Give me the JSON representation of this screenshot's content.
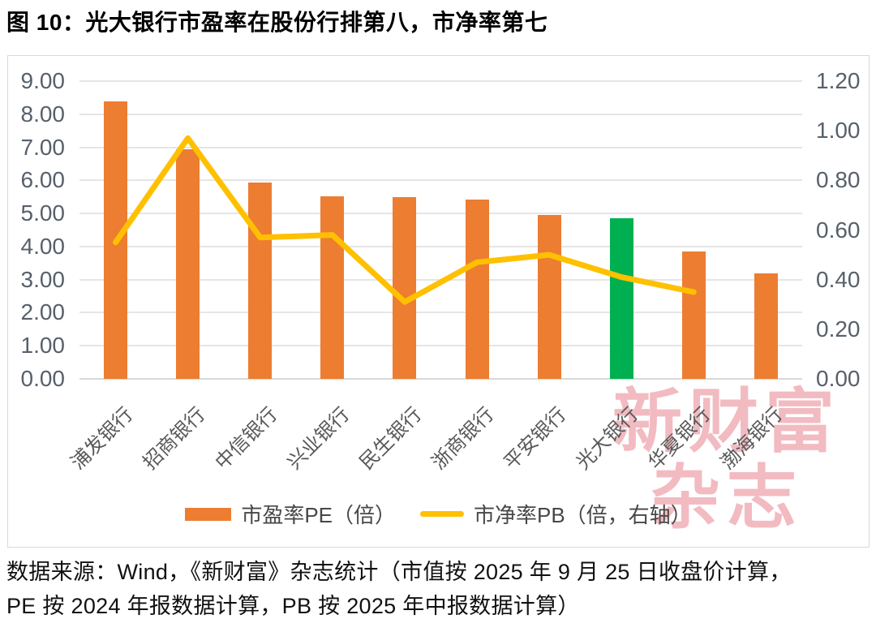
{
  "title": "图 10：光大银行市盈率在股份行排第八，市净率第七",
  "source": {
    "line1": "数据来源：Wind，《新财富》杂志统计（市值按 2025 年 9 月 25 日收盘价计算，",
    "line2": "PE 按 2024 年报数据计算，PB 按 2025 年中报数据计算）"
  },
  "watermark": {
    "line1": "新财富",
    "line2": "杂志",
    "color": "#F2BBC1"
  },
  "colors": {
    "bar_orange": "#ED7D31",
    "bar_highlight_green": "#00B050",
    "line_gold": "#FFC000",
    "axis_text": "#57606b",
    "gridline": "#E5E5E5"
  },
  "chart_data": {
    "type": "bar",
    "subtype": "bar+line combo, dual axis",
    "categories": [
      "浦发银行",
      "招商银行",
      "中信银行",
      "兴业银行",
      "民生银行",
      "浙商银行",
      "平安银行",
      "光大银行",
      "华夏银行",
      "渤海银行"
    ],
    "series": [
      {
        "name": "市盈率PE（倍）",
        "type": "bar",
        "axis": "left",
        "color": "#ED7D31",
        "highlight_index": 7,
        "highlight_color": "#00B050",
        "values": [
          8.38,
          6.94,
          5.93,
          5.52,
          5.5,
          5.42,
          4.96,
          4.86,
          3.85,
          3.2
        ]
      },
      {
        "name": "市净率PB（倍，右轴）",
        "type": "line",
        "axis": "right",
        "color": "#FFC000",
        "values": [
          0.55,
          0.97,
          0.57,
          0.58,
          0.31,
          0.47,
          0.5,
          0.41,
          0.35,
          null
        ]
      }
    ],
    "left_axis": {
      "min": 0,
      "max": 9,
      "ticks": [
        "9.00",
        "8.00",
        "7.00",
        "6.00",
        "5.00",
        "4.00",
        "3.00",
        "2.00",
        "1.00",
        "0.00"
      ]
    },
    "right_axis": {
      "min": 0,
      "max": 1.2,
      "ticks": [
        "1.20",
        "1.00",
        "0.80",
        "0.60",
        "0.40",
        "0.20",
        "0.00"
      ]
    },
    "grid": true,
    "legend_position": "bottom",
    "xlabel": "",
    "ylabel": ""
  }
}
